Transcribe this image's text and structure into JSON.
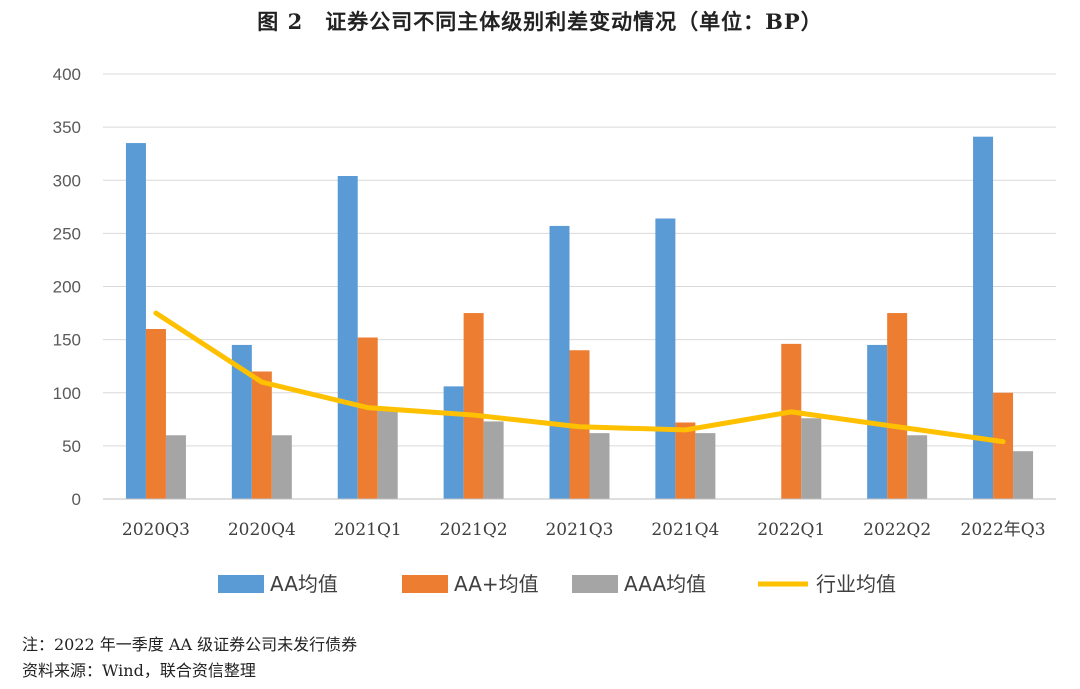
{
  "title": "图 2　证券公司不同主体级别利差变动情况（单位：BP）",
  "chart_data": {
    "type": "bar",
    "categories": [
      "2020Q3",
      "2020Q4",
      "2021Q1",
      "2021Q2",
      "2021Q3",
      "2021Q4",
      "2022Q1",
      "2022Q2",
      "2022年Q3"
    ],
    "series": [
      {
        "name": "AA均值",
        "type": "bar",
        "color": "#5B9BD5",
        "values": [
          335,
          145,
          304,
          106,
          257,
          264,
          null,
          145,
          341
        ]
      },
      {
        "name": "AA+均值",
        "type": "bar",
        "color": "#ED7D31",
        "values": [
          160,
          120,
          152,
          175,
          140,
          72,
          146,
          175,
          100
        ]
      },
      {
        "name": "AAA均值",
        "type": "bar",
        "color": "#A5A5A5",
        "values": [
          60,
          60,
          83,
          73,
          62,
          62,
          76,
          60,
          45
        ]
      },
      {
        "name": "行业均值",
        "type": "line",
        "color": "#FFC000",
        "values": [
          175,
          110,
          86,
          79,
          68,
          65,
          82,
          68,
          54
        ]
      }
    ],
    "yticks": [
      "0",
      "50",
      "100",
      "150",
      "200",
      "250",
      "300",
      "350",
      "400"
    ],
    "ylim": [
      0,
      400
    ],
    "grid": true,
    "legend": "bottom"
  },
  "notes": {
    "note": "注：2022 年一季度 AA 级证券公司未发行债券",
    "source": "资料来源：Wind，联合资信整理"
  }
}
